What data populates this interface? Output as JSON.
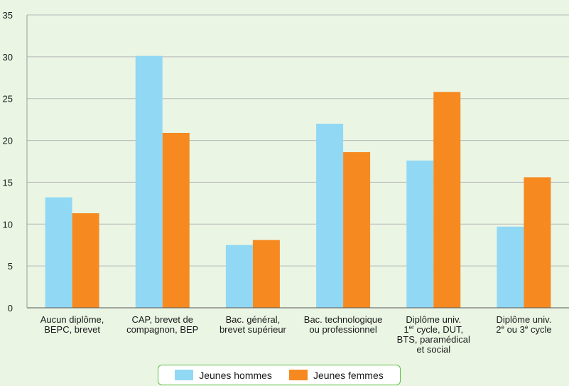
{
  "chart_data": {
    "type": "bar",
    "categories": [
      {
        "lines": [
          [
            "Aucun diplôme,"
          ],
          [
            "BEPC, brevet"
          ]
        ]
      },
      {
        "lines": [
          [
            "CAP, brevet de"
          ],
          [
            "compagnon, BEP"
          ]
        ]
      },
      {
        "lines": [
          [
            "Bac. général,"
          ],
          [
            "brevet supérieur"
          ]
        ]
      },
      {
        "lines": [
          [
            "Bac. technologique"
          ],
          [
            "ou professionnel"
          ]
        ]
      },
      {
        "lines": [
          [
            "Diplôme univ."
          ],
          [
            "1",
            "er",
            " cycle, DUT,"
          ],
          [
            "BTS, paramédical"
          ],
          [
            "et social"
          ]
        ]
      },
      {
        "lines": [
          [
            "Diplôme univ."
          ],
          [
            "2",
            "e",
            " ou 3",
            "e",
            " cycle"
          ]
        ]
      }
    ],
    "series": [
      {
        "name": "Jeunes hommes",
        "color": "#91d8f4",
        "values": [
          13.2,
          30.1,
          7.5,
          22.0,
          17.6,
          9.7
        ]
      },
      {
        "name": "Jeunes femmes",
        "color": "#f68a20",
        "values": [
          11.3,
          20.9,
          8.1,
          18.6,
          25.8,
          15.6
        ]
      }
    ],
    "ylim": [
      0,
      35
    ],
    "yticks": [
      0,
      5,
      10,
      15,
      20,
      25,
      30,
      35
    ],
    "grid": true,
    "legend_position": "bottom"
  }
}
